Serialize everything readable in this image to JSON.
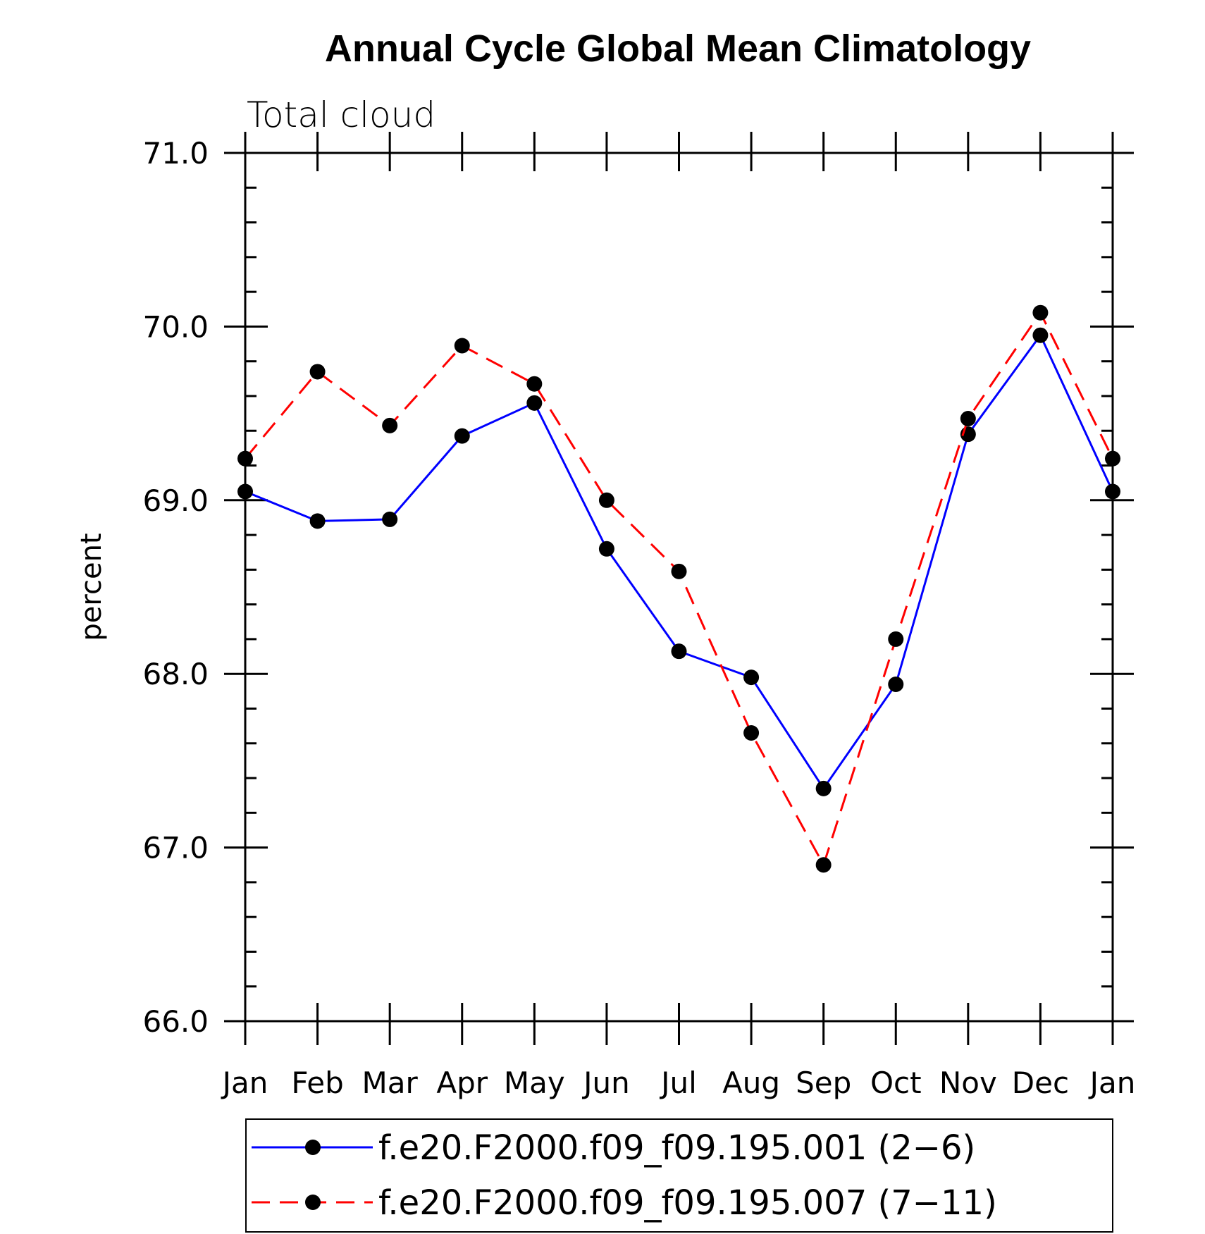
{
  "chart_data": {
    "type": "line",
    "title": "Annual Cycle Global Mean Climatology",
    "subtitle": "Total cloud",
    "xlabel": "",
    "ylabel": "percent",
    "ylim": [
      66.0,
      71.0
    ],
    "y_ticks": [
      "66.0",
      "67.0",
      "68.0",
      "69.0",
      "70.0",
      "71.0"
    ],
    "categories": [
      "Jan",
      "Feb",
      "Mar",
      "Apr",
      "May",
      "Jun",
      "Jul",
      "Aug",
      "Sep",
      "Oct",
      "Nov",
      "Dec",
      "Jan"
    ],
    "series": [
      {
        "name": "f.e20.F2000.f09_f09.195.001 (2−6)",
        "color": "#0000ff",
        "line_style": "solid",
        "marker": "filled-circle",
        "values": [
          69.05,
          68.88,
          68.89,
          69.37,
          69.56,
          68.72,
          68.13,
          67.98,
          67.34,
          67.94,
          69.38,
          69.95,
          69.05
        ]
      },
      {
        "name": "f.e20.F2000.f09_f09.195.007 (7−11)",
        "color": "#ff0000",
        "line_style": "dashed",
        "marker": "filled-circle",
        "values": [
          69.24,
          69.74,
          69.43,
          69.89,
          69.67,
          69.0,
          68.59,
          67.66,
          66.9,
          68.2,
          69.47,
          70.08,
          69.24
        ]
      }
    ],
    "legend_position": "bottom"
  }
}
